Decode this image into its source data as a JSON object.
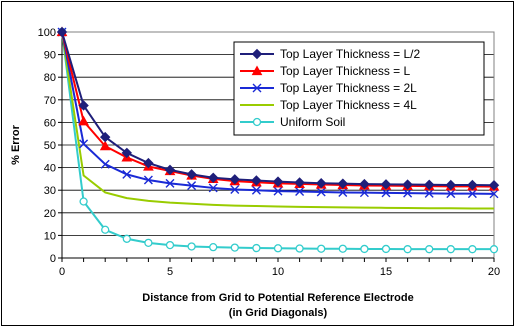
{
  "chart_data": {
    "type": "line",
    "xlabel": "Distance from Grid to Potential Reference Electrode",
    "xlabel_line2": "(in Grid Diagonals)",
    "ylabel": "% Error",
    "xlim": [
      0,
      20
    ],
    "ylim": [
      0,
      100
    ],
    "xticks": [
      0,
      5,
      10,
      15,
      20
    ],
    "yticks": [
      0,
      10,
      20,
      30,
      40,
      50,
      60,
      70,
      80,
      90,
      100
    ],
    "grid": "horizontal",
    "legend_position": "top-right",
    "x": [
      0,
      1,
      2,
      3,
      4,
      5,
      6,
      7,
      8,
      9,
      10,
      11,
      12,
      13,
      14,
      15,
      16,
      17,
      18,
      19,
      20
    ],
    "series": [
      {
        "name": "Top Layer Thickness = L/2",
        "color": "#1f1f7a",
        "marker": "diamond",
        "values": [
          100,
          67.5,
          53.5,
          46.5,
          42,
          39,
          37,
          35.5,
          34.8,
          34.3,
          33.8,
          33.4,
          33.1,
          32.9,
          32.7,
          32.6,
          32.5,
          32.4,
          32.3,
          32.3,
          32.2
        ]
      },
      {
        "name": "Top Layer Thickness = L",
        "color": "#ff0000",
        "marker": "triangle",
        "values": [
          100,
          60.5,
          49.5,
          44.5,
          40.5,
          38.5,
          36.5,
          35,
          34,
          33.5,
          33,
          32.8,
          32.5,
          32.3,
          32.1,
          32,
          31.9,
          31.8,
          31.7,
          31.7,
          31.6
        ]
      },
      {
        "name": "Top Layer Thickness = 2L",
        "color": "#1a2ad6",
        "marker": "x",
        "values": [
          100,
          50.5,
          41.5,
          37,
          34.5,
          33,
          32,
          31,
          30.3,
          30,
          29.6,
          29.4,
          29.2,
          29,
          28.9,
          28.8,
          28.7,
          28.6,
          28.5,
          28.5,
          28.4
        ]
      },
      {
        "name": "Top Layer Thickness = 4L",
        "color": "#99cc00",
        "marker": "none",
        "values": [
          100,
          36.5,
          29,
          26.5,
          25.3,
          24.5,
          24,
          23.5,
          23.2,
          23,
          22.8,
          22.6,
          22.5,
          22.4,
          22.3,
          22.2,
          22.1,
          22,
          22,
          21.9,
          21.9
        ]
      },
      {
        "name": "Uniform Soil",
        "color": "#33cccc",
        "marker": "circle",
        "values": [
          100,
          25,
          12.5,
          8.5,
          6.7,
          5.7,
          5.1,
          4.8,
          4.6,
          4.4,
          4.3,
          4.2,
          4.1,
          4.1,
          4,
          4,
          3.9,
          3.9,
          3.9,
          3.9,
          3.9
        ]
      }
    ]
  }
}
